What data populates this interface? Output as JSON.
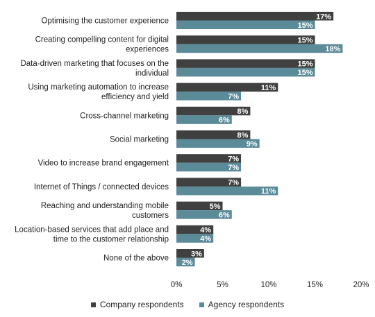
{
  "chart_data": {
    "type": "bar",
    "orientation": "horizontal",
    "categories": [
      [
        "Optimising the customer experience"
      ],
      [
        "Creating compelling content for digital",
        "experiences"
      ],
      [
        "Data-driven marketing that focuses on the",
        "individual"
      ],
      [
        "Using marketing automation to increase",
        "efficiency and yield"
      ],
      [
        "Cross-channel marketing"
      ],
      [
        "Social marketing"
      ],
      [
        "Video to increase brand engagement"
      ],
      [
        "Internet of Things / connected devices"
      ],
      [
        "Reaching and understanding mobile",
        "customers"
      ],
      [
        "Location-based services that add place and",
        "time to the customer relationship"
      ],
      [
        "None of the above"
      ]
    ],
    "series": [
      {
        "name": "Company respondents",
        "color": "#404040",
        "values": [
          17,
          15,
          15,
          11,
          8,
          8,
          7,
          7,
          5,
          4,
          3
        ]
      },
      {
        "name": "Agency respondents",
        "color": "#5b8a99",
        "values": [
          15,
          18,
          15,
          7,
          6,
          9,
          7,
          11,
          6,
          4,
          2
        ]
      }
    ],
    "value_suffix": "%",
    "xlim": [
      0,
      20
    ],
    "xticks": [
      0,
      5,
      10,
      15,
      20
    ],
    "xtick_labels": [
      "0%",
      "5%",
      "10%",
      "15%",
      "20%"
    ],
    "grid": false,
    "legend_position": "bottom"
  }
}
